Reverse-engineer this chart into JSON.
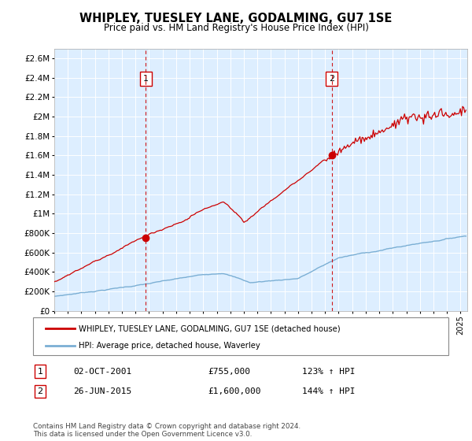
{
  "title": "WHIPLEY, TUESLEY LANE, GODALMING, GU7 1SE",
  "subtitle": "Price paid vs. HM Land Registry's House Price Index (HPI)",
  "ylim": [
    0,
    2700000
  ],
  "yticks": [
    0,
    200000,
    400000,
    600000,
    800000,
    1000000,
    1200000,
    1400000,
    1600000,
    1800000,
    2000000,
    2200000,
    2400000,
    2600000
  ],
  "ytick_labels": [
    "£0",
    "£200K",
    "£400K",
    "£600K",
    "£800K",
    "£1M",
    "£1.2M",
    "£1.4M",
    "£1.6M",
    "£1.8M",
    "£2M",
    "£2.2M",
    "£2.4M",
    "£2.6M"
  ],
  "xlim_start": 1995.0,
  "xlim_end": 2025.5,
  "sale1_x": 2001.75,
  "sale1_y": 755000,
  "sale1_label": "1",
  "sale2_x": 2015.48,
  "sale2_y": 1600000,
  "sale2_label": "2",
  "legend_line1": "WHIPLEY, TUESLEY LANE, GODALMING, GU7 1SE (detached house)",
  "legend_line2": "HPI: Average price, detached house, Waverley",
  "table_row1": [
    "1",
    "02-OCT-2001",
    "£755,000",
    "123% ↑ HPI"
  ],
  "table_row2": [
    "2",
    "26-JUN-2015",
    "£1,600,000",
    "144% ↑ HPI"
  ],
  "footer": "Contains HM Land Registry data © Crown copyright and database right 2024.\nThis data is licensed under the Open Government Licence v3.0.",
  "hpi_color": "#7bafd4",
  "price_color": "#cc0000",
  "bg_color": "#ddeeff",
  "sale_marker_color": "#cc0000",
  "dashed_line_color": "#cc0000",
  "grid_color": "#ffffff"
}
